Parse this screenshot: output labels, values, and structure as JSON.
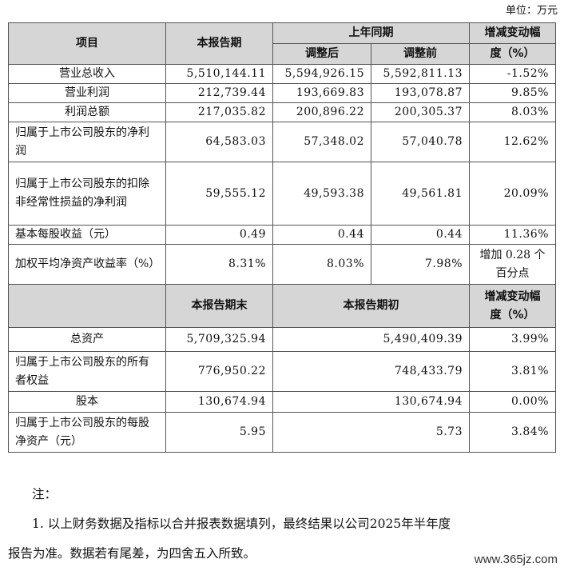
{
  "unit_label": "单位：万元",
  "header": {
    "item": "项目",
    "current": "本报告期",
    "prior_year": "上年同期",
    "adjusted": "调整后",
    "before_adjust": "调整前",
    "change_line1": "增减变动幅",
    "change_line2": "度（%）"
  },
  "rows": [
    {
      "label": "营业总收入",
      "current": "5,510,144.11",
      "adjusted": "5,594,926.15",
      "before": "5,592,811.13",
      "change": "-1.52%"
    },
    {
      "label": "营业利润",
      "current": "212,739.44",
      "adjusted": "193,669.83",
      "before": "193,078.87",
      "change": "9.85%"
    },
    {
      "label": "利润总额",
      "current": "217,035.82",
      "adjusted": "200,896.22",
      "before": "200,305.37",
      "change": "8.03%"
    },
    {
      "label": "归属于上市公司股东的净利润",
      "current": "64,583.03",
      "adjusted": "57,348.02",
      "before": "57,040.78",
      "change": "12.62%"
    },
    {
      "label": "归属于上市公司股东的扣除非经常性损益的净利润",
      "current": "59,555.12",
      "adjusted": "49,593.38",
      "before": "49,561.81",
      "change": "20.09%"
    },
    {
      "label": "基本每股收益（元）",
      "current": "0.49",
      "adjusted": "0.44",
      "before": "0.44",
      "change": "11.36%"
    },
    {
      "label": "加权平均净资产收益率（%）",
      "current": "8.31%",
      "adjusted": "8.03%",
      "before": "7.98%",
      "change": "增加 0.28 个百分点"
    }
  ],
  "header2": {
    "period_end": "本报告期末",
    "period_start": "本报告期初",
    "change_line1": "增减变动幅",
    "change_line2": "度（%）"
  },
  "rows2": [
    {
      "label": "总资产",
      "end": "5,709,325.94",
      "start": "5,490,409.39",
      "change": "3.99%"
    },
    {
      "label": "归属于上市公司股东的所有者权益",
      "end": "776,950.22",
      "start": "748,433.79",
      "change": "3.81%"
    },
    {
      "label": "股本",
      "end": "130,674.94",
      "start": "130,674.94",
      "change": "0.00%"
    },
    {
      "label": "归属于上市公司股东的每股净资产（元）",
      "end": "5.95",
      "start": "5.73",
      "change": "3.84%"
    }
  ],
  "notes": {
    "title": "注：",
    "line1": "1. 以上财务数据及指标以合并报表数据填列，最终结果以公司2025年半年度",
    "line2": "报告为准。数据若有尾差，为四舍五入所致。"
  },
  "watermark": "www.365jz.com"
}
